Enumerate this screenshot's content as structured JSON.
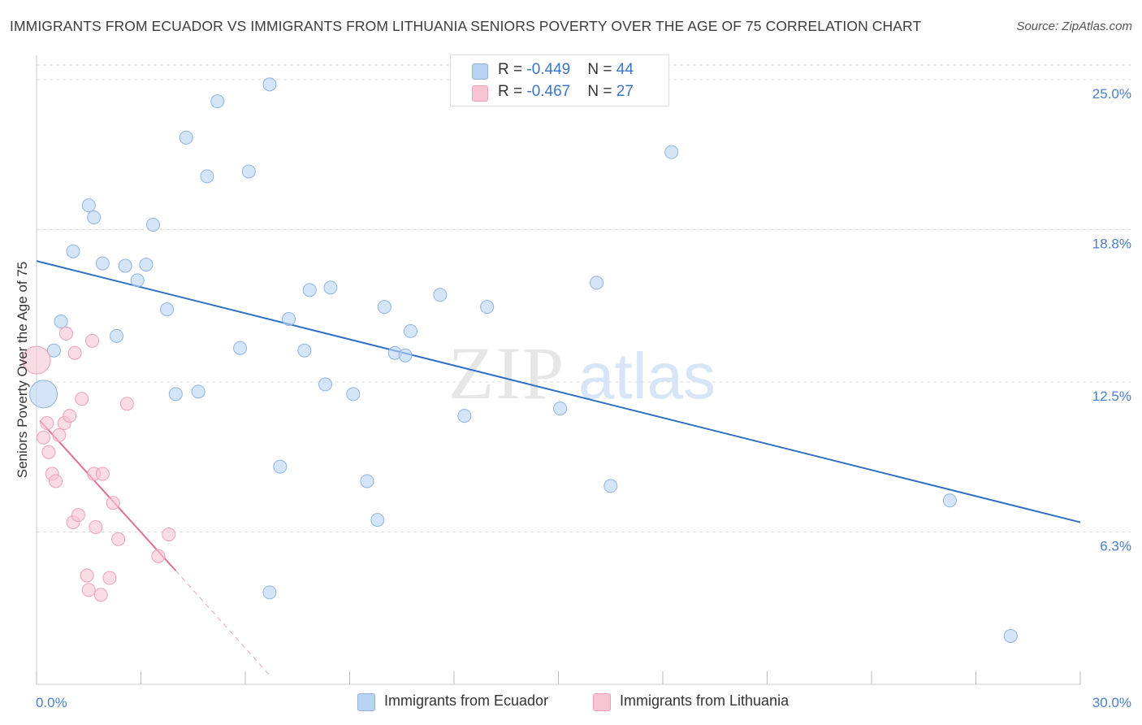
{
  "title": "IMMIGRANTS FROM ECUADOR VS IMMIGRANTS FROM LITHUANIA SENIORS POVERTY OVER THE AGE OF 75 CORRELATION CHART",
  "source": "Source: ZipAtlas.com",
  "watermark": {
    "zip": "ZIP",
    "atlas": "atlas"
  },
  "legend": {
    "rows": [
      {
        "r_label": "R = ",
        "r_value": "-0.449",
        "n_label": "N = ",
        "n_value": "44"
      },
      {
        "r_label": "R = ",
        "r_value": "-0.467",
        "n_label": "N = ",
        "n_value": "27"
      }
    ]
  },
  "colors": {
    "ecuador_fill": "#b9d3f3",
    "ecuador_stroke": "#8fb3e3",
    "ecuador_line": "#2f72c9",
    "lithuania_fill": "#f7c4d3",
    "lithuania_stroke": "#eea0b8",
    "lithuania_line": "#e07098",
    "tick_label": "#4a7fd0",
    "grid": "#dddddd"
  },
  "chart_data": {
    "type": "scatter",
    "title": "IMMIGRANTS FROM ECUADOR VS IMMIGRANTS FROM LITHUANIA SENIORS POVERTY OVER THE AGE OF 75 CORRELATION CHART",
    "xlabel": "",
    "ylabel": "Seniors Poverty Over the Age of 75",
    "xlim": [
      0,
      30
    ],
    "ylim": [
      0,
      25.6
    ],
    "x_tick_labels": [
      "0.0%",
      "30.0%"
    ],
    "y_ticks": [
      6.3,
      12.5,
      18.8,
      25.0
    ],
    "y_tick_labels": [
      "6.3%",
      "12.5%",
      "18.8%",
      "25.0%"
    ],
    "grid": true,
    "series": [
      {
        "name": "Immigrants from Ecuador",
        "color": "#b9d3f3",
        "trend": {
          "x": [
            0,
            30
          ],
          "y": [
            17.5,
            6.7
          ]
        },
        "points": [
          {
            "x": 0.2,
            "y": 12.0,
            "big": true
          },
          {
            "x": 0.5,
            "y": 13.8
          },
          {
            "x": 0.7,
            "y": 15.0
          },
          {
            "x": 1.05,
            "y": 17.9
          },
          {
            "x": 1.5,
            "y": 19.8
          },
          {
            "x": 1.65,
            "y": 19.3
          },
          {
            "x": 1.9,
            "y": 17.4
          },
          {
            "x": 2.3,
            "y": 14.4
          },
          {
            "x": 2.55,
            "y": 17.3
          },
          {
            "x": 2.9,
            "y": 16.7
          },
          {
            "x": 3.15,
            "y": 17.35
          },
          {
            "x": 3.35,
            "y": 19.0
          },
          {
            "x": 3.75,
            "y": 15.5
          },
          {
            "x": 4.0,
            "y": 12.0
          },
          {
            "x": 4.3,
            "y": 22.6
          },
          {
            "x": 4.65,
            "y": 12.1
          },
          {
            "x": 4.9,
            "y": 21.0
          },
          {
            "x": 5.2,
            "y": 24.1
          },
          {
            "x": 5.85,
            "y": 13.9
          },
          {
            "x": 6.1,
            "y": 21.2
          },
          {
            "x": 6.7,
            "y": 3.8
          },
          {
            "x": 6.7,
            "y": 24.8
          },
          {
            "x": 7.0,
            "y": 9.0
          },
          {
            "x": 7.25,
            "y": 15.1
          },
          {
            "x": 7.7,
            "y": 13.8
          },
          {
            "x": 7.85,
            "y": 16.3
          },
          {
            "x": 8.3,
            "y": 12.4
          },
          {
            "x": 8.45,
            "y": 16.4
          },
          {
            "x": 9.1,
            "y": 12.0
          },
          {
            "x": 9.5,
            "y": 8.4
          },
          {
            "x": 9.8,
            "y": 6.8
          },
          {
            "x": 10.0,
            "y": 15.6
          },
          {
            "x": 10.3,
            "y": 13.7
          },
          {
            "x": 10.6,
            "y": 13.6
          },
          {
            "x": 10.75,
            "y": 14.6
          },
          {
            "x": 11.6,
            "y": 16.1
          },
          {
            "x": 12.3,
            "y": 11.1
          },
          {
            "x": 12.95,
            "y": 15.6
          },
          {
            "x": 15.05,
            "y": 11.4
          },
          {
            "x": 16.1,
            "y": 16.6
          },
          {
            "x": 16.5,
            "y": 8.2
          },
          {
            "x": 18.25,
            "y": 22.0
          },
          {
            "x": 26.25,
            "y": 7.6
          },
          {
            "x": 28.0,
            "y": 2.0
          }
        ]
      },
      {
        "name": "Immigrants from Lithuania",
        "color": "#f7c4d3",
        "trend": {
          "x": [
            0.1,
            4.0
          ],
          "y": [
            10.9,
            4.7
          ]
        },
        "trend_extension": {
          "x": [
            4.0,
            6.75
          ],
          "y": [
            4.7,
            0.3
          ]
        },
        "points": [
          {
            "x": 0.0,
            "y": 13.4,
            "big": true
          },
          {
            "x": 0.2,
            "y": 10.2
          },
          {
            "x": 0.3,
            "y": 10.8
          },
          {
            "x": 0.35,
            "y": 9.6
          },
          {
            "x": 0.45,
            "y": 8.7
          },
          {
            "x": 0.55,
            "y": 8.4
          },
          {
            "x": 0.65,
            "y": 10.3
          },
          {
            "x": 0.8,
            "y": 10.8
          },
          {
            "x": 0.85,
            "y": 14.5
          },
          {
            "x": 0.95,
            "y": 11.1
          },
          {
            "x": 1.05,
            "y": 6.7
          },
          {
            "x": 1.1,
            "y": 13.7
          },
          {
            "x": 1.2,
            "y": 7.0
          },
          {
            "x": 1.3,
            "y": 11.8
          },
          {
            "x": 1.45,
            "y": 4.5
          },
          {
            "x": 1.5,
            "y": 3.9
          },
          {
            "x": 1.6,
            "y": 14.2
          },
          {
            "x": 1.65,
            "y": 8.7
          },
          {
            "x": 1.7,
            "y": 6.5
          },
          {
            "x": 1.85,
            "y": 3.7
          },
          {
            "x": 1.9,
            "y": 8.7
          },
          {
            "x": 2.1,
            "y": 4.4
          },
          {
            "x": 2.2,
            "y": 7.5
          },
          {
            "x": 2.35,
            "y": 6.0
          },
          {
            "x": 2.6,
            "y": 11.6
          },
          {
            "x": 3.5,
            "y": 5.3
          },
          {
            "x": 3.8,
            "y": 6.2
          }
        ]
      }
    ]
  },
  "bottom_legend": [
    "Immigrants from Ecuador",
    "Immigrants from Lithuania"
  ]
}
